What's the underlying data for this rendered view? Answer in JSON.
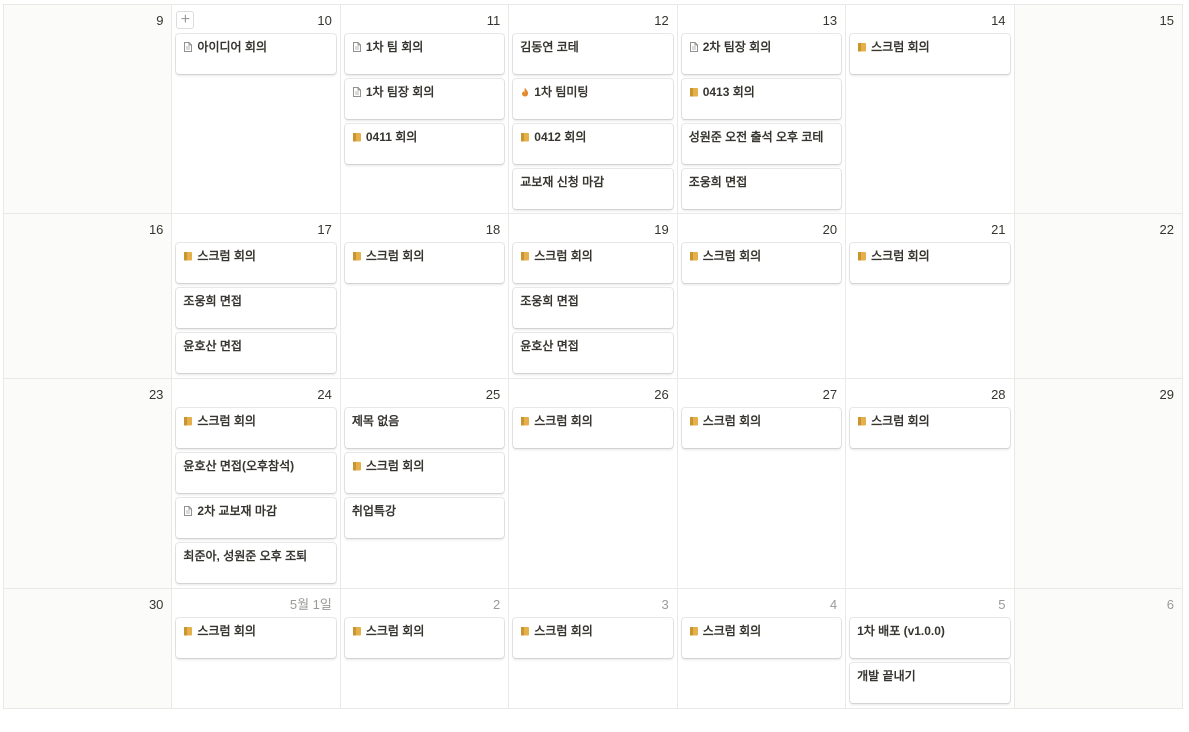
{
  "weeks": [
    {
      "days": [
        {
          "label": "9",
          "muted": false,
          "weekend": true,
          "events": []
        },
        {
          "label": "10",
          "muted": false,
          "weekend": false,
          "add_button": "+",
          "events": [
            {
              "icon": "page",
              "title": "아이디어 회의"
            }
          ]
        },
        {
          "label": "11",
          "muted": false,
          "weekend": false,
          "events": [
            {
              "icon": "page",
              "title": "1차 팀 회의"
            },
            {
              "icon": "page",
              "title": "1차 팀장 회의"
            },
            {
              "icon": "folder",
              "title": "0411 회의"
            }
          ]
        },
        {
          "label": "12",
          "muted": false,
          "weekend": false,
          "events": [
            {
              "icon": "",
              "title": "김동연 코테"
            },
            {
              "icon": "fire",
              "title": "1차 팀미팅"
            },
            {
              "icon": "folder",
              "title": "0412 회의"
            },
            {
              "icon": "",
              "title": "교보재 신청 마감"
            }
          ]
        },
        {
          "label": "13",
          "muted": false,
          "weekend": false,
          "events": [
            {
              "icon": "page",
              "title": "2차 팀장 회의"
            },
            {
              "icon": "folder",
              "title": "0413 회의"
            },
            {
              "icon": "",
              "title": "성원준 오전 출석 오후 코테"
            },
            {
              "icon": "",
              "title": "조웅희 면접"
            }
          ]
        },
        {
          "label": "14",
          "muted": false,
          "weekend": false,
          "events": [
            {
              "icon": "folder",
              "title": "스크럼 회의"
            }
          ]
        },
        {
          "label": "15",
          "muted": false,
          "weekend": true,
          "events": []
        }
      ]
    },
    {
      "days": [
        {
          "label": "16",
          "muted": false,
          "weekend": true,
          "events": []
        },
        {
          "label": "17",
          "muted": false,
          "weekend": false,
          "events": [
            {
              "icon": "folder",
              "title": "스크럼 회의"
            },
            {
              "icon": "",
              "title": "조웅희 면접"
            },
            {
              "icon": "",
              "title": "윤호산 면접"
            }
          ]
        },
        {
          "label": "18",
          "muted": false,
          "weekend": false,
          "events": [
            {
              "icon": "folder",
              "title": "스크럼 회의"
            }
          ]
        },
        {
          "label": "19",
          "muted": false,
          "weekend": false,
          "events": [
            {
              "icon": "folder",
              "title": "스크럼 회의"
            },
            {
              "icon": "",
              "title": "조웅희 면접"
            },
            {
              "icon": "",
              "title": "윤호산 면접"
            }
          ]
        },
        {
          "label": "20",
          "muted": false,
          "weekend": false,
          "events": [
            {
              "icon": "folder",
              "title": "스크럼 회의"
            }
          ]
        },
        {
          "label": "21",
          "muted": false,
          "weekend": false,
          "events": [
            {
              "icon": "folder",
              "title": "스크럼 회의"
            }
          ]
        },
        {
          "label": "22",
          "muted": false,
          "weekend": true,
          "events": []
        }
      ]
    },
    {
      "days": [
        {
          "label": "23",
          "muted": false,
          "weekend": true,
          "events": []
        },
        {
          "label": "24",
          "muted": false,
          "weekend": false,
          "events": [
            {
              "icon": "folder",
              "title": "스크럼 회의"
            },
            {
              "icon": "",
              "title": "윤호산 면접(오후참석)"
            },
            {
              "icon": "page",
              "title": "2차 교보재 마감"
            },
            {
              "icon": "",
              "title": "최준아, 성원준 오후 조퇴"
            }
          ]
        },
        {
          "label": "25",
          "muted": false,
          "weekend": false,
          "events": [
            {
              "icon": "",
              "title": "제목 없음"
            },
            {
              "icon": "folder",
              "title": "스크럼 회의"
            },
            {
              "icon": "",
              "title": "취업특강"
            }
          ]
        },
        {
          "label": "26",
          "muted": false,
          "weekend": false,
          "events": [
            {
              "icon": "folder",
              "title": "스크럼 회의"
            }
          ]
        },
        {
          "label": "27",
          "muted": false,
          "weekend": false,
          "events": [
            {
              "icon": "folder",
              "title": "스크럼 회의"
            }
          ]
        },
        {
          "label": "28",
          "muted": false,
          "weekend": false,
          "events": [
            {
              "icon": "folder",
              "title": "스크럼 회의"
            }
          ]
        },
        {
          "label": "29",
          "muted": false,
          "weekend": true,
          "events": []
        }
      ]
    },
    {
      "days": [
        {
          "label": "30",
          "muted": false,
          "weekend": true,
          "events": []
        },
        {
          "label": "5월 1일",
          "muted": true,
          "weekend": false,
          "events": [
            {
              "icon": "folder",
              "title": "스크럼 회의"
            }
          ]
        },
        {
          "label": "2",
          "muted": true,
          "weekend": false,
          "events": [
            {
              "icon": "folder",
              "title": "스크럼 회의"
            }
          ]
        },
        {
          "label": "3",
          "muted": true,
          "weekend": false,
          "events": [
            {
              "icon": "folder",
              "title": "스크럼 회의"
            }
          ]
        },
        {
          "label": "4",
          "muted": true,
          "weekend": false,
          "events": [
            {
              "icon": "folder",
              "title": "스크럼 회의"
            }
          ]
        },
        {
          "label": "5",
          "muted": true,
          "weekend": false,
          "events": [
            {
              "icon": "",
              "title": "1차 배포 (v1.0.0)"
            },
            {
              "icon": "",
              "title": "개발 끝내기"
            }
          ]
        },
        {
          "label": "6",
          "muted": true,
          "weekend": true,
          "events": []
        }
      ]
    }
  ],
  "icon_colors": {
    "page": "#91918e",
    "folder": "#e5b04c",
    "fire": "#e28a2c",
    "border": "#e9e9e7",
    "weekend_bg": "#fbfbfa"
  }
}
